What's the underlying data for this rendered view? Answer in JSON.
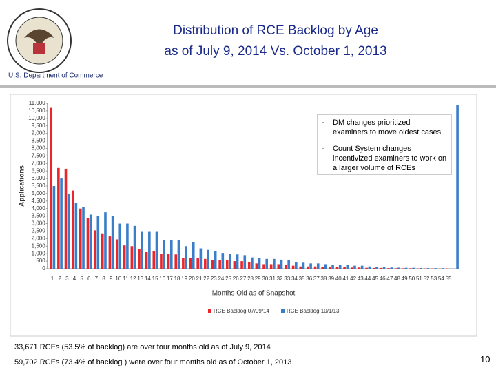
{
  "header": {
    "title_lines": [
      "Distribution of RCE Backlog by Age",
      "as of July 9, 2014 Vs. October 1, 2013"
    ],
    "organization": "U.S. Department of Commerce"
  },
  "chart_data": {
    "type": "bar",
    "x_label": "Months Old as of Snapshot",
    "y_label": "Applications",
    "categories": [
      "1",
      "2",
      "3",
      "4",
      "5",
      "6",
      "7",
      "8",
      "9",
      "10",
      "11",
      "12",
      "13",
      "14",
      "15",
      "16",
      "17",
      "18",
      "19",
      "20",
      "21",
      "22",
      "23",
      "24",
      "25",
      "26",
      "27",
      "28",
      "29",
      "30",
      "31",
      "32",
      "33",
      "34",
      "35",
      "36",
      "37",
      "38",
      "39",
      "40",
      "41",
      "42",
      "43",
      "44",
      "45",
      "46",
      "47",
      "48",
      "49",
      "50",
      "51",
      "52",
      "53",
      "54",
      "55",
      null
    ],
    "series": [
      {
        "name": "RCE Backlog 07/09/14",
        "color": "#e8262b",
        "values": [
          10700,
          6700,
          6650,
          5200,
          4000,
          3350,
          2550,
          2350,
          2150,
          1950,
          1550,
          1500,
          1300,
          1100,
          1150,
          1000,
          1000,
          950,
          700,
          700,
          700,
          650,
          550,
          550,
          550,
          500,
          500,
          450,
          350,
          300,
          300,
          300,
          250,
          200,
          150,
          150,
          150,
          100,
          100,
          100,
          100,
          80,
          80,
          60,
          50,
          50,
          40,
          30,
          30,
          30,
          20,
          20,
          20,
          10,
          20,
          null
        ]
      },
      {
        "name": "RCE Backlog 10/1/13",
        "color": "#3a7dc9",
        "values": [
          5500,
          6000,
          5000,
          4400,
          4100,
          3600,
          3500,
          3750,
          3500,
          3000,
          3000,
          2850,
          2450,
          2450,
          2450,
          1900,
          1900,
          1900,
          1500,
          1750,
          1350,
          1250,
          1150,
          1050,
          1000,
          950,
          900,
          750,
          700,
          650,
          650,
          600,
          550,
          450,
          400,
          350,
          350,
          300,
          250,
          250,
          250,
          200,
          200,
          150,
          100,
          100,
          80,
          70,
          60,
          60,
          50,
          40,
          40,
          40,
          10,
          10900
        ]
      }
    ],
    "ylim": [
      0,
      11000
    ],
    "yticks": [
      0,
      500,
      {
        "value": 1000,
        "label": "1,000"
      },
      {
        "value": 1500,
        "label": "1,500"
      },
      {
        "value": 2000,
        "label": "2,000"
      },
      {
        "value": 2500,
        "label": "2,500"
      },
      {
        "value": 3000,
        "label": "3,000"
      },
      {
        "value": 3500,
        "label": "3,500"
      },
      {
        "value": 4000,
        "label": "4,000"
      },
      {
        "value": 4500,
        "label": "4,500"
      },
      {
        "value": 5000,
        "label": "5,000"
      },
      {
        "value": 5500,
        "label": "5,500"
      },
      {
        "value": 6000,
        "label": "6,000"
      },
      {
        "value": 6500,
        "label": "6,500"
      },
      {
        "value": 7000,
        "label": "7,000"
      },
      {
        "value": 7500,
        "label": "7,500"
      },
      {
        "value": 8000,
        "label": "8,000"
      },
      {
        "value": 8500,
        "label": "8,500"
      },
      {
        "value": 9000,
        "label": "9,000"
      },
      {
        "value": 9500,
        "label": "9,500"
      },
      {
        "value": 10000,
        "label": "10,000"
      },
      {
        "value": 10500,
        "label": "10,500"
      },
      {
        "value": 11000,
        "label": "11,000"
      }
    ],
    "grid": false,
    "legend": "bottom",
    "annotations": [
      "DM changes prioritized examiners to move oldest cases",
      "Count System changes incentivized examiners to work on a larger volume of RCEs"
    ]
  },
  "notes": [
    "33,671 RCEs (53.5% of backlog) are over four months old as of July 9, 2014",
    "59,702  RCEs (73.4% of backlog ) were over four months old as of October 1, 2013"
  ],
  "page_number": "10"
}
